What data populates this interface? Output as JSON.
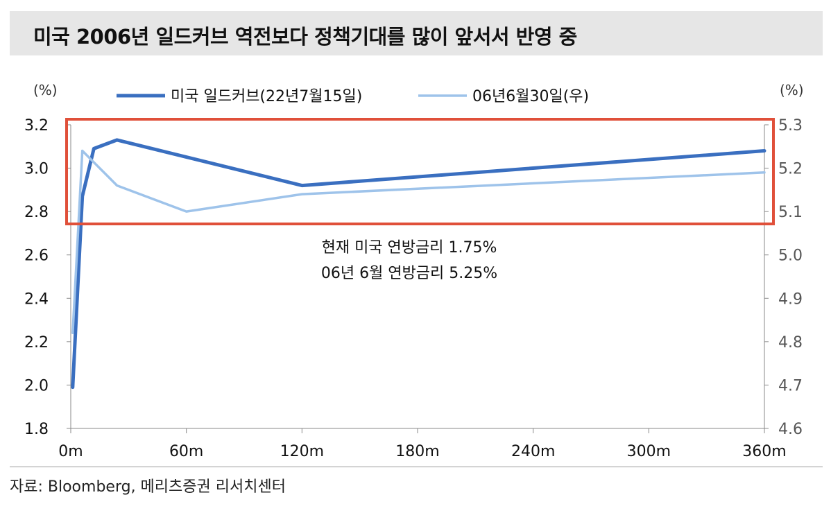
{
  "title": "미국 2006년 일드커브 역전보다 정책기대를 많이 앞서서 반영 중",
  "source": "자료: Bloomberg, 메리츠증권 리서치센터",
  "chart_data": {
    "type": "line",
    "title": "미국 2006년 일드커브 역전보다 정책기대를 많이 앞서서 반영 중",
    "x_unit_labels": [
      "0m",
      "60m",
      "120m",
      "180m",
      "240m",
      "300m",
      "360m"
    ],
    "xlim": [
      0,
      360
    ],
    "left_axis": {
      "label": "(%)",
      "ylim": [
        1.8,
        3.2
      ],
      "ticks": [
        "1.8",
        "2.0",
        "2.2",
        "2.4",
        "2.6",
        "2.8",
        "3.0",
        "3.2"
      ]
    },
    "right_axis": {
      "label": "(%)",
      "ylim": [
        4.6,
        5.3
      ],
      "ticks": [
        "4.6",
        "4.7",
        "4.8",
        "4.9",
        "5.0",
        "5.1",
        "5.2",
        "5.3"
      ]
    },
    "legend_position": "top",
    "series": [
      {
        "name": "미국 일드커브(22년7월15일)",
        "axis": "left",
        "color": "#3a6fc0",
        "x": [
          1,
          6,
          12,
          24,
          120,
          360
        ],
        "y": [
          1.99,
          2.87,
          3.09,
          3.13,
          2.92,
          3.08
        ]
      },
      {
        "name": "06년6월30일(우)",
        "axis": "right",
        "color": "#9ec3ea",
        "x": [
          1,
          6,
          24,
          60,
          120,
          360
        ],
        "y": [
          4.82,
          5.24,
          5.16,
          5.1,
          5.14,
          5.19
        ]
      }
    ],
    "annotations": [
      "현재 미국 연방금리 1.75%",
      "06년 6월 연방금리 5.25%"
    ],
    "highlight_box_color": "#e0503a",
    "grid": false
  }
}
